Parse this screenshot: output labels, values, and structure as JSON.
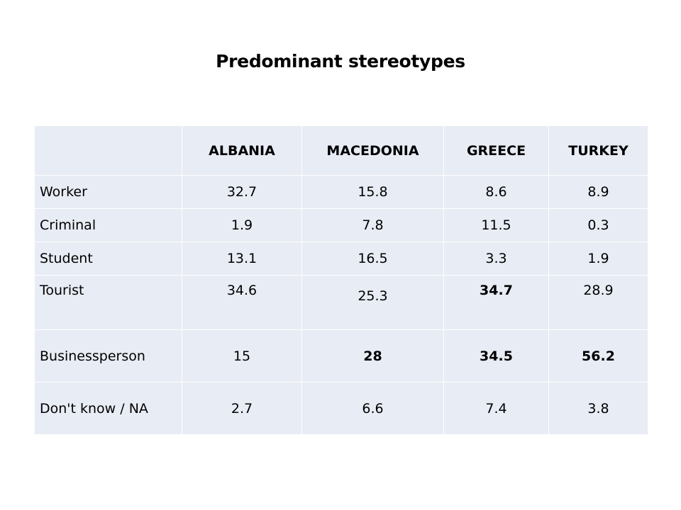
{
  "slide": {
    "title": "Predominant stereotypes"
  },
  "table": {
    "corner": "",
    "columns": [
      "ALBANIA",
      "MACEDONIA",
      "GREECE",
      "TURKEY"
    ],
    "rows": [
      {
        "label": "Worker",
        "values": [
          "32.7",
          "15.8",
          "8.6",
          "8.9"
        ]
      },
      {
        "label": "Criminal",
        "values": [
          "1.9",
          "7.8",
          "11.5",
          "0.3"
        ]
      },
      {
        "label": "Student",
        "values": [
          "13.1",
          "16.5",
          "3.3",
          "1.9"
        ]
      },
      {
        "label": "Tourist",
        "values": [
          "34.6",
          "25.3",
          "34.7",
          "28.9"
        ]
      },
      {
        "label": "Businessperson",
        "values": [
          "15",
          "28",
          "34.5",
          "56.2"
        ]
      },
      {
        "label": "Don't know / NA",
        "values": [
          "2.7",
          "6.6",
          "7.4",
          "3.8"
        ]
      }
    ]
  },
  "colors": {
    "cell_background": "#e8ecf4",
    "grid_lines": "#ffffff",
    "text": "#000000"
  }
}
